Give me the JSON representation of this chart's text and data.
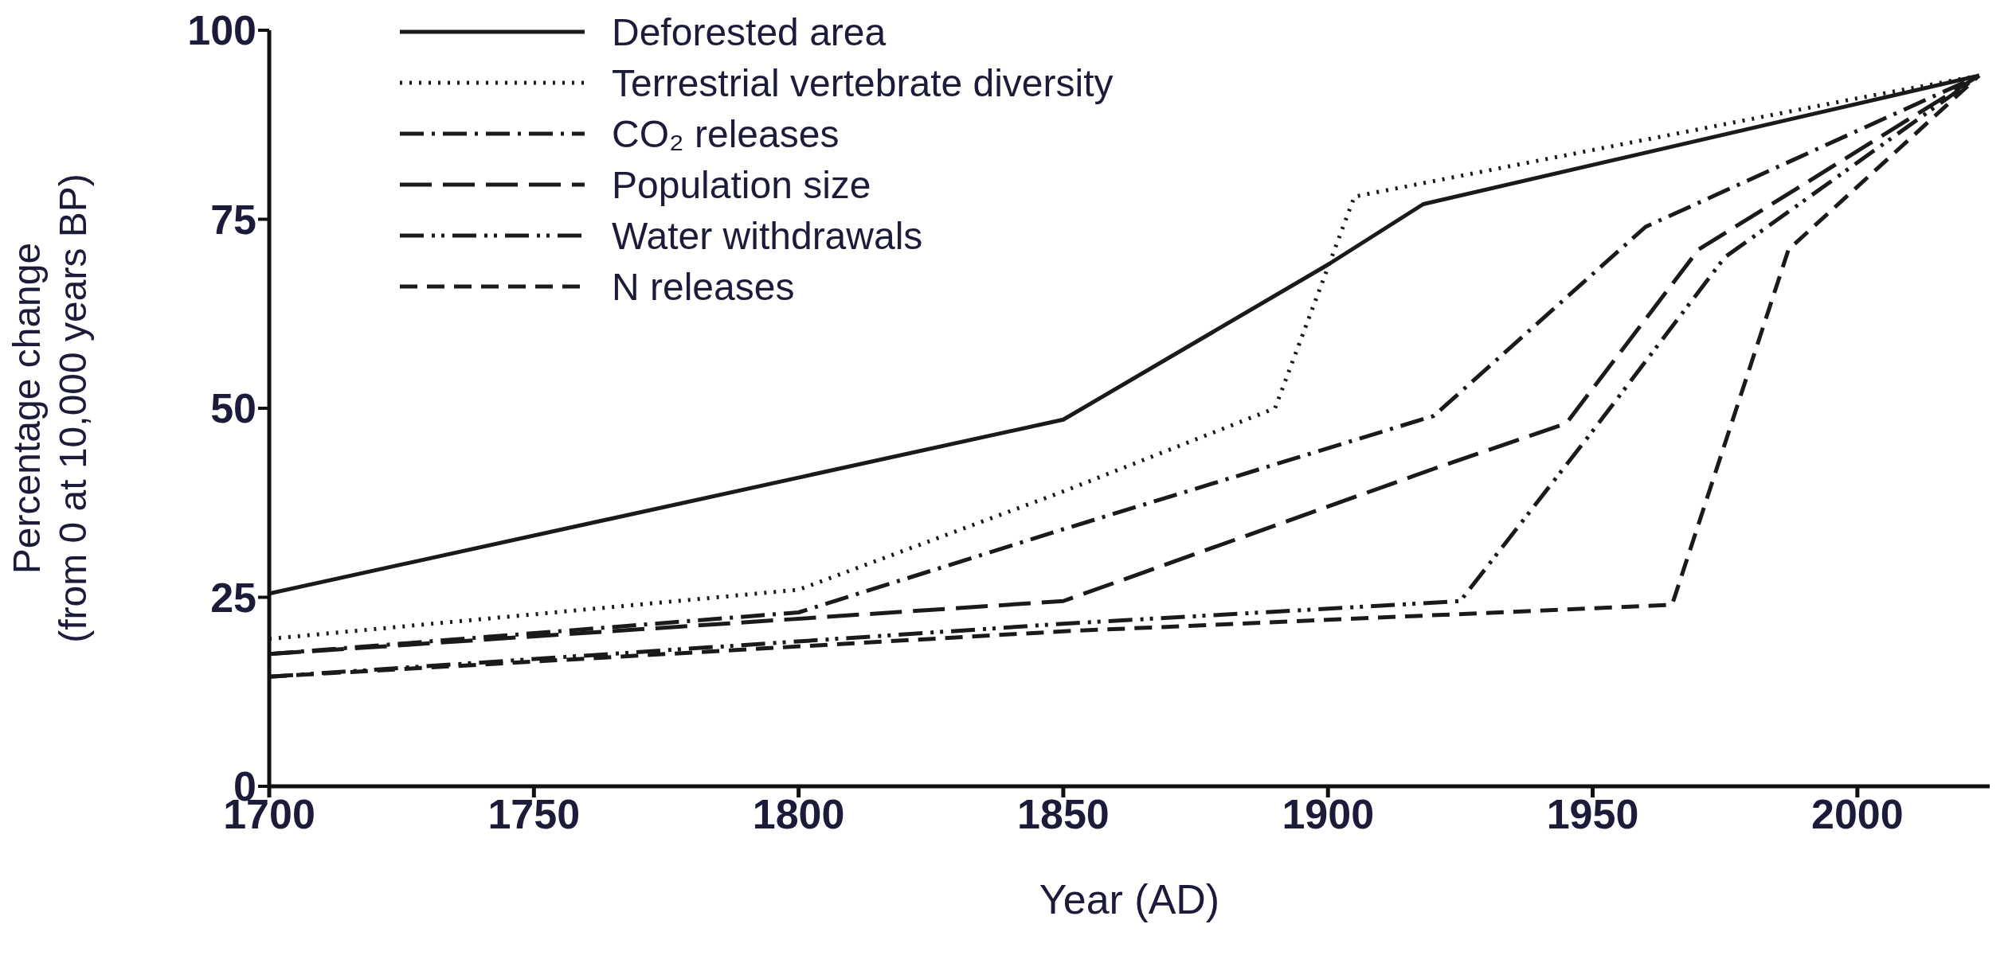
{
  "chart_data": {
    "type": "line",
    "xlabel": "Year (AD)",
    "ylabel": "Percentage change\n(from 0 at 10,000 years BP)",
    "xlim": [
      1700,
      2025
    ],
    "xticks": [
      1700,
      1750,
      1800,
      1850,
      1900,
      1950,
      2000
    ],
    "ylim": [
      0,
      100
    ],
    "yticks": [
      0,
      25,
      50,
      75,
      100
    ],
    "legend": "top left",
    "marker": "none",
    "series": [
      {
        "name": "Deforested area",
        "color": "#1a1a1a",
        "line_style": "solid",
        "x": [
          1700,
          1850,
          1900,
          1918,
          2023
        ],
        "values": [
          25.5,
          48.5,
          69,
          77,
          94
        ]
      },
      {
        "name": "Terrestrial vertebrate diversity",
        "color": "#1a1a1a",
        "line_style": "dotted",
        "x": [
          1700,
          1800,
          1850,
          1890,
          1905,
          2000,
          2023
        ],
        "values": [
          19.5,
          26,
          39,
          50,
          78,
          91,
          94
        ]
      },
      {
        "name": "CO₂ releases",
        "color": "#1a1a1a",
        "line_style": "dashdot",
        "x": [
          1700,
          1800,
          1850,
          1920,
          1960,
          2023
        ],
        "values": [
          17.5,
          23,
          34,
          49,
          74,
          94
        ]
      },
      {
        "name": "Population size",
        "color": "#1a1a1a",
        "line_style": "longdash",
        "x": [
          1700,
          1850,
          1920,
          1945,
          1970,
          2023
        ],
        "values": [
          17.5,
          24.5,
          42,
          48,
          71,
          94
        ]
      },
      {
        "name": "Water withdrawals",
        "color": "#1a1a1a",
        "line_style": "dashdotdot",
        "x": [
          1700,
          1850,
          1925,
          1950,
          1975,
          2023
        ],
        "values": [
          14.5,
          21.5,
          24.5,
          47,
          70,
          94
        ]
      },
      {
        "name": "N releases",
        "color": "#1a1a1a",
        "line_style": "dashed",
        "x": [
          1700,
          1850,
          1965,
          1987,
          2023
        ],
        "values": [
          14.5,
          20.5,
          24,
          71,
          94
        ]
      }
    ]
  }
}
